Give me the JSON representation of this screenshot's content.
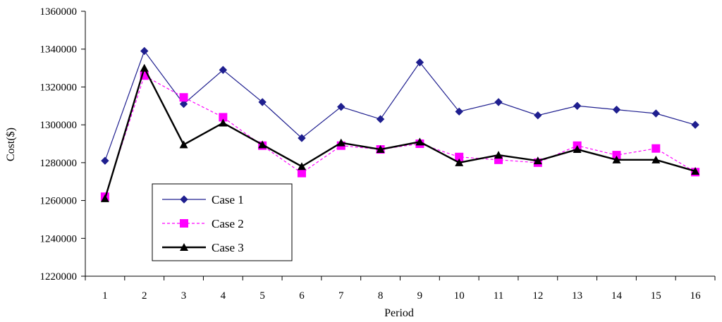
{
  "chart_data": {
    "type": "line",
    "title": "",
    "xlabel": "Period",
    "ylabel": "Cost($)",
    "x": [
      1,
      2,
      3,
      4,
      5,
      6,
      7,
      8,
      9,
      10,
      11,
      12,
      13,
      14,
      15,
      16
    ],
    "ylim": [
      1220000,
      1360000
    ],
    "yticks": [
      1220000,
      1240000,
      1260000,
      1280000,
      1300000,
      1320000,
      1340000,
      1360000
    ],
    "grid": false,
    "legend_position": "bottom-left",
    "series": [
      {
        "name": "Case 1",
        "color": "#1f1f8f",
        "line_style": "solid",
        "marker": "diamond",
        "values": [
          1281000,
          1339000,
          1311000,
          1329000,
          1312000,
          1293000,
          1309500,
          1303000,
          1333000,
          1307000,
          1312000,
          1305000,
          1310000,
          1308000,
          1306000,
          1300000
        ]
      },
      {
        "name": "Case 2",
        "color": "#ff00ff",
        "line_style": "dashed",
        "marker": "square",
        "values": [
          1262000,
          1326000,
          1314500,
          1304000,
          1289000,
          1274500,
          1289000,
          1287000,
          1290000,
          1283000,
          1281500,
          1280000,
          1289000,
          1284000,
          1287500,
          1275000
        ]
      },
      {
        "name": "Case 3",
        "color": "#000000",
        "line_style": "solid-bold",
        "marker": "triangle",
        "values": [
          1261000,
          1330000,
          1289500,
          1301000,
          1289500,
          1278000,
          1290500,
          1287000,
          1291000,
          1280000,
          1284000,
          1281000,
          1287000,
          1281500,
          1281500,
          1275500
        ]
      }
    ]
  }
}
